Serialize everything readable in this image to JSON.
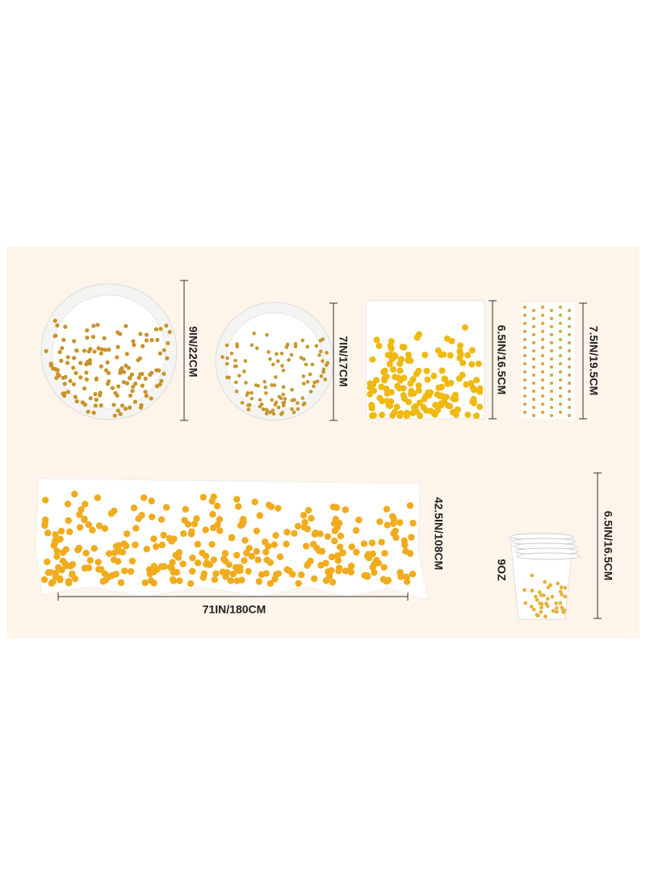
{
  "labels": {
    "large_plate": "9IN/22CM",
    "small_plate": "7IN/17CM",
    "napkin": "6.5IN/16.5CM",
    "straw": "7.5IN/19.5CM",
    "tablecloth_height": "42.5IN/108CM",
    "tablecloth_width": "71IN/180CM",
    "cup_volume": "9OZ",
    "cup_height": "6.5IN/16.5CM"
  }
}
